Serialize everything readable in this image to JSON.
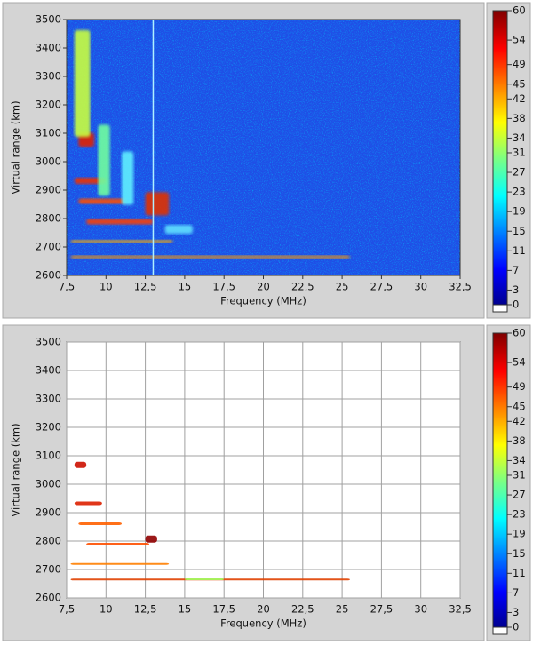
{
  "chart_data": [
    {
      "type": "heatmap",
      "xlabel": "Frequency (MHz)",
      "ylabel": "Virtual range (km)",
      "xlim": [
        7.5,
        32.5
      ],
      "xticks": [
        {
          "value": 7.5,
          "label": "7,5"
        },
        10,
        {
          "value": 12.5,
          "label": "12,5"
        },
        15,
        {
          "value": 17.5,
          "label": "17,5"
        },
        20,
        {
          "value": 22.5,
          "label": "22,5"
        },
        25,
        {
          "value": 27.5,
          "label": "27,5"
        },
        30,
        {
          "value": 32.5,
          "label": "32,5"
        }
      ],
      "ylim": [
        2600,
        3500
      ],
      "yticks": [
        2600,
        2700,
        2800,
        2900,
        3000,
        3100,
        3200,
        3300,
        3400,
        3500
      ],
      "clim": [
        0,
        60
      ],
      "cticks": [
        0,
        3,
        7,
        11,
        15,
        19,
        23,
        27,
        31,
        34,
        38,
        42,
        45,
        49,
        54,
        60
      ],
      "grid": false,
      "background": "#1f4fe6"
    },
    {
      "type": "heatmap",
      "xlabel": "Frequency (MHz)",
      "ylabel": "Virtual range (km)",
      "xlim": [
        7.5,
        32.5
      ],
      "xticks": [
        {
          "value": 7.5,
          "label": "7,5"
        },
        10,
        {
          "value": 12.5,
          "label": "12,5"
        },
        15,
        {
          "value": 17.5,
          "label": "17,5"
        },
        20,
        {
          "value": 22.5,
          "label": "22,5"
        },
        25,
        {
          "value": 27.5,
          "label": "27,5"
        },
        30,
        {
          "value": 32.5,
          "label": "32,5"
        }
      ],
      "ylim": [
        2600,
        3500
      ],
      "yticks": [
        2600,
        2700,
        2800,
        2900,
        3000,
        3100,
        3200,
        3300,
        3400,
        3500
      ],
      "clim": [
        0,
        60
      ],
      "cticks": [
        0,
        3,
        7,
        11,
        15,
        19,
        23,
        27,
        31,
        34,
        38,
        42,
        45,
        49,
        54,
        60
      ],
      "grid": true,
      "background": "#ffffff"
    }
  ]
}
